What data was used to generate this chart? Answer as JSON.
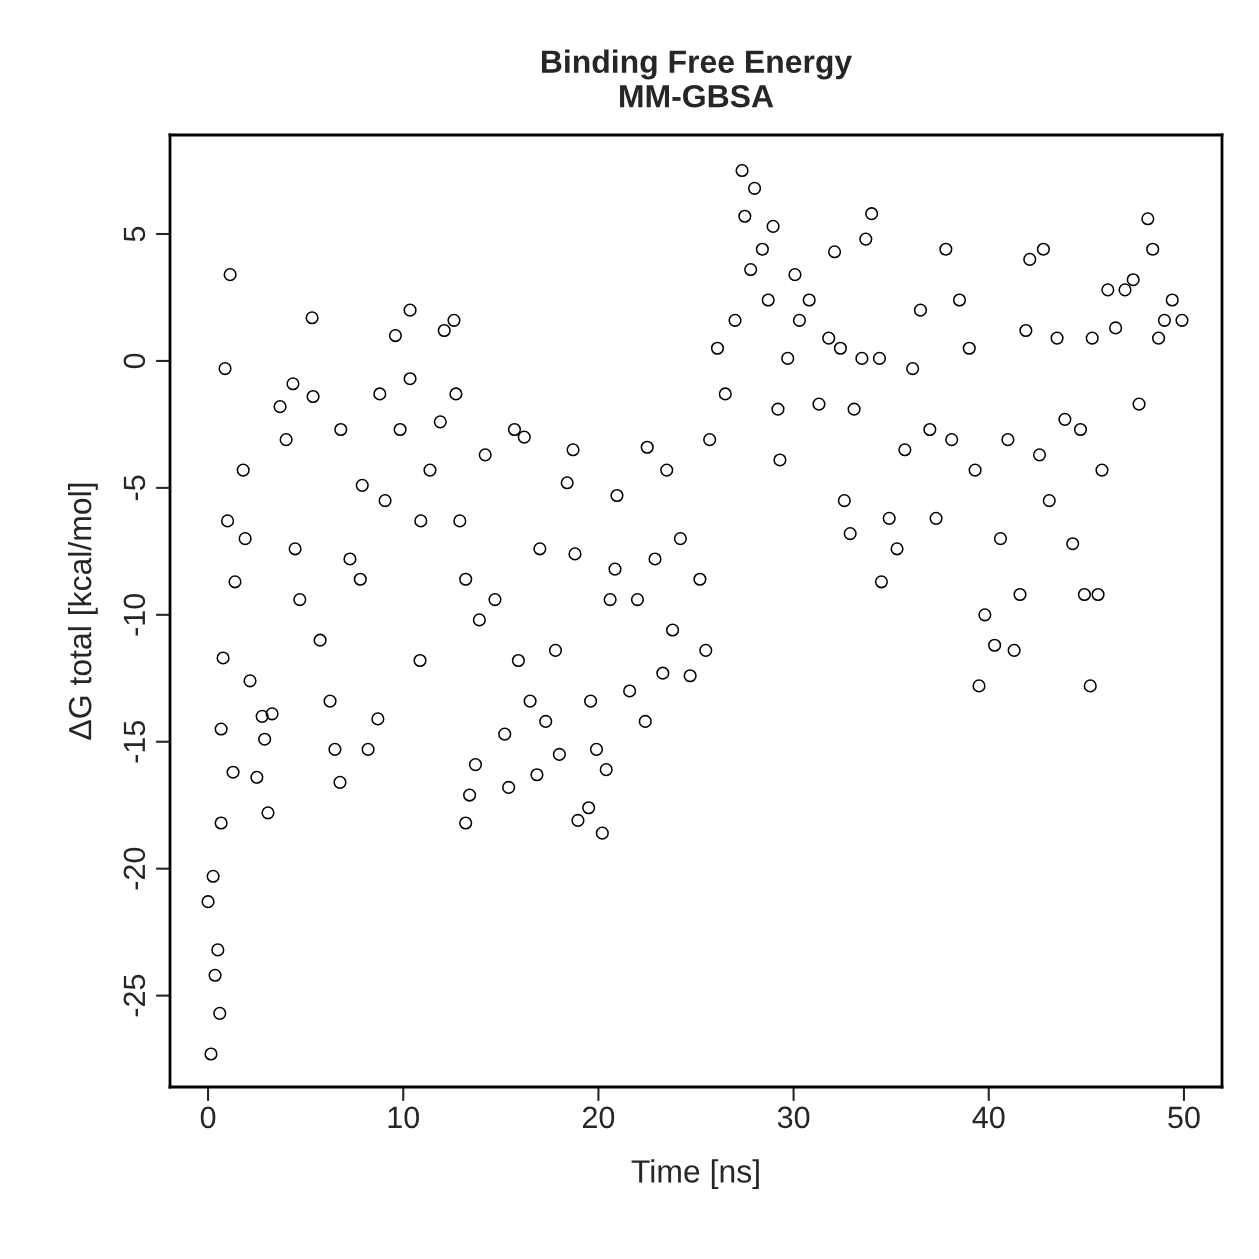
{
  "chart_data": {
    "type": "scatter",
    "title": "Binding Free Energy\nMM-GBSA",
    "xlabel": "Time [ns]",
    "ylabel": "ΔG total [kcal/mol]",
    "xlim": [
      -1.95,
      51.95
    ],
    "ylim": [
      -28.6,
      8.9
    ],
    "xticks": [
      0,
      10,
      20,
      30,
      40,
      50
    ],
    "yticks": [
      -25,
      -20,
      -15,
      -10,
      -5,
      0,
      5
    ],
    "grid": false,
    "legend": false,
    "marker": "circle",
    "series": [
      {
        "color": "#000000",
        "x": [
          0,
          0.15,
          0.26,
          0.36,
          0.5,
          0.6,
          0.67,
          0.67,
          0.77,
          0.87,
          1.13,
          1.0,
          1.28,
          1.38,
          1.8,
          1.9,
          2.15,
          2.5,
          2.77,
          2.9,
          3.07,
          3.28,
          3.69,
          4.0,
          4.35,
          4.46,
          4.7,
          5.33,
          5.38,
          5.74,
          6.25,
          6.5,
          6.76,
          6.8,
          7.27,
          7.8,
          7.9,
          8.2,
          8.7,
          8.8,
          9.07,
          9.6,
          9.84,
          10.35,
          10.35,
          10.86,
          10.9,
          11.37,
          11.9,
          12.1,
          12.6,
          12.7,
          12.9,
          13.2,
          13.2,
          13.4,
          13.7,
          13.9,
          14.2,
          14.7,
          15.2,
          15.4,
          15.7,
          15.9,
          16.2,
          16.5,
          16.85,
          17.0,
          17.3,
          17.8,
          18.0,
          18.4,
          18.7,
          18.8,
          18.95,
          19.5,
          19.6,
          19.9,
          20.2,
          20.4,
          20.6,
          20.85,
          20.95,
          21.6,
          22.0,
          22.4,
          22.5,
          22.9,
          23.3,
          23.5,
          23.8,
          24.2,
          24.7,
          25.2,
          25.5,
          25.7,
          26.1,
          26.5,
          27.0,
          27.36,
          27.5,
          27.8,
          28.0,
          28.4,
          28.7,
          28.95,
          29.2,
          29.3,
          29.7,
          30.07,
          30.3,
          30.8,
          31.3,
          31.8,
          32.1,
          32.4,
          32.6,
          32.9,
          33.1,
          33.5,
          33.7,
          34.0,
          34.4,
          34.5,
          34.9,
          35.3,
          35.7,
          36.1,
          36.5,
          36.98,
          37.3,
          37.8,
          38.1,
          38.5,
          39.0,
          39.3,
          39.5,
          39.8,
          40.3,
          40.6,
          40.98,
          41.3,
          41.6,
          41.9,
          42.1,
          42.6,
          42.8,
          43.1,
          43.5,
          43.9,
          44.3,
          44.7,
          44.9,
          45.2,
          45.3,
          45.6,
          45.8,
          46.1,
          46.5,
          46.98,
          47.4,
          47.7,
          48.15,
          48.4,
          48.7,
          49.0,
          49.4,
          49.9
        ],
        "values": [
          -21.3,
          -27.3,
          -20.3,
          -24.2,
          -23.2,
          -25.7,
          -18.2,
          -14.5,
          -11.7,
          -0.3,
          3.4,
          -6.3,
          -16.2,
          -8.7,
          -4.3,
          -7.0,
          -12.6,
          -16.4,
          -14.0,
          -14.9,
          -17.8,
          -13.9,
          -1.8,
          -3.1,
          -0.9,
          -7.4,
          -9.4,
          1.7,
          -1.4,
          -11.0,
          -13.4,
          -15.3,
          -16.6,
          -2.7,
          -7.8,
          -8.6,
          -4.9,
          -15.3,
          -14.1,
          -1.3,
          -5.5,
          1.0,
          -2.7,
          2.0,
          -0.7,
          -11.8,
          -6.3,
          -4.3,
          -2.4,
          1.2,
          1.6,
          -1.3,
          -6.3,
          -8.6,
          -18.2,
          -17.1,
          -15.9,
          -10.2,
          -3.7,
          -9.4,
          -14.7,
          -16.8,
          -2.7,
          -11.8,
          -3.0,
          -13.4,
          -16.3,
          -7.4,
          -14.2,
          -11.4,
          -15.5,
          -4.8,
          -3.5,
          -7.6,
          -18.1,
          -17.6,
          -13.4,
          -15.3,
          -18.6,
          -16.1,
          -9.4,
          -8.2,
          -5.3,
          -13.0,
          -9.4,
          -14.2,
          -3.4,
          -7.8,
          -12.3,
          -4.3,
          -10.6,
          -7.0,
          -12.4,
          -8.6,
          -11.4,
          -3.1,
          0.5,
          -1.3,
          1.6,
          7.5,
          5.7,
          3.6,
          6.8,
          4.4,
          2.4,
          5.3,
          -1.9,
          -3.9,
          0.1,
          3.4,
          1.6,
          2.4,
          -1.7,
          0.9,
          4.3,
          0.5,
          -5.5,
          -6.8,
          -1.9,
          0.1,
          4.8,
          5.8,
          0.1,
          -8.7,
          -6.2,
          -7.4,
          -3.5,
          -0.3,
          2.0,
          -2.7,
          -6.2,
          4.4,
          -3.1,
          2.4,
          0.5,
          -4.3,
          -12.8,
          -10.0,
          -11.2,
          -7.0,
          -3.1,
          -11.4,
          -9.2,
          1.2,
          4.0,
          -3.7,
          4.4,
          -5.5,
          0.9,
          -2.3,
          -7.2,
          -2.7,
          -9.2,
          -12.8,
          0.9,
          -9.2,
          -4.3,
          2.8,
          1.3,
          2.8,
          3.2,
          -1.7,
          5.6,
          4.4,
          0.9,
          1.6,
          2.4,
          1.6
        ]
      }
    ]
  }
}
